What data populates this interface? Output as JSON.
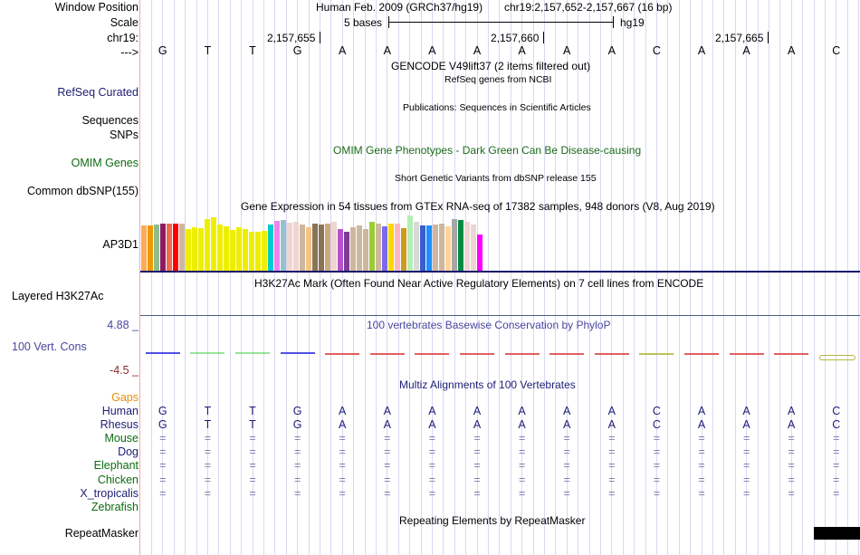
{
  "header": {
    "window_position_label": "Window Position",
    "scale_label": "Scale",
    "chrom_label": "chr19:",
    "strand_label": "--->",
    "assembly_title": "Human Feb. 2009 (GRCh37/hg19)",
    "position": "chr19:2,157,652-2,157,667 (16 bp)",
    "scale_text": "5 bases",
    "scale_db": "hg19",
    "ruler_ticks": [
      "2,157,655",
      "2,157,660",
      "2,157,665"
    ]
  },
  "sequence": [
    "G",
    "T",
    "T",
    "G",
    "A",
    "A",
    "A",
    "A",
    "A",
    "A",
    "A",
    "C",
    "A",
    "A",
    "A",
    "C"
  ],
  "tracks": {
    "gencode": {
      "title": "GENCODE V49lift37 (2 items filtered out)"
    },
    "refseq": {
      "label": "RefSeq Curated",
      "title": "RefSeq genes from NCBI"
    },
    "publications": {
      "label": "Sequences",
      "title": "Publications: Sequences in Scientific Articles"
    },
    "snps_label": "SNPs",
    "omim": {
      "label": "OMIM Genes",
      "title": "OMIM Gene Phenotypes - Dark Green Can Be Disease-causing"
    },
    "dbsnp": {
      "label": "Common dbSNP(155)",
      "title": "Short Genetic Variants from dbSNP release 155"
    },
    "gtex": {
      "label": "AP3D1",
      "title": "Gene Expression in 54 tissues from GTEx RNA-seq of 17382 samples, 948 donors (V8, Aug 2019)"
    },
    "h3k27ac": {
      "label": "Layered H3K27Ac",
      "title": "H3K27Ac Mark (Often Found Near Active Regulatory Elements) on 7 cell lines from ENCODE"
    },
    "phylop": {
      "label": "100 Vert. Cons",
      "title": "100 vertebrates Basewise Conservation by PhyloP",
      "max_label": "4.88 _",
      "min_label": "-4.5 _",
      "range": [
        -4.5,
        4.88
      ],
      "segments": [
        {
          "color": "#3333dd",
          "value": 0.2
        },
        {
          "color": "#33cc33",
          "value": 0.2
        },
        {
          "color": "#33cc33",
          "value": 0.2
        },
        {
          "color": "#3333dd",
          "value": 0.2
        },
        {
          "color": "#dd4444",
          "value": -0.1
        },
        {
          "color": "#dd4444",
          "value": -0.1
        },
        {
          "color": "#dd4444",
          "value": -0.1
        },
        {
          "color": "#dd4444",
          "value": -0.1
        },
        {
          "color": "#dd4444",
          "value": -0.1
        },
        {
          "color": "#dd4444",
          "value": -0.1
        },
        {
          "color": "#dd4444",
          "value": -0.1
        },
        {
          "color": "#b5b53a",
          "value": 0.0
        },
        {
          "color": "#dd4444",
          "value": -0.1
        },
        {
          "color": "#dd4444",
          "value": -0.1
        },
        {
          "color": "#dd4444",
          "value": -0.1
        },
        {
          "color": "#a8a820",
          "value": -0.3
        }
      ]
    },
    "multiz": {
      "title": "Multiz Alignments of 100 Vertebrates",
      "gaps_label": "Gaps",
      "species": [
        {
          "name": "Human",
          "color": "#1d1d77",
          "row": [
            "G",
            "T",
            "T",
            "G",
            "A",
            "A",
            "A",
            "A",
            "A",
            "A",
            "A",
            "C",
            "A",
            "A",
            "A",
            "C"
          ]
        },
        {
          "name": "Rhesus",
          "color": "#1d1d77",
          "row": [
            "G",
            "T",
            "T",
            "G",
            "A",
            "A",
            "A",
            "A",
            "A",
            "A",
            "A",
            "C",
            "A",
            "A",
            "A",
            "C"
          ]
        },
        {
          "name": "Mouse",
          "color": "#0c6b10",
          "row": [
            "=",
            "=",
            "=",
            "=",
            "=",
            "=",
            "=",
            "=",
            "=",
            "=",
            "=",
            "=",
            "=",
            "=",
            "=",
            "="
          ]
        },
        {
          "name": "Dog",
          "color": "#1d1d77",
          "row": [
            "=",
            "=",
            "=",
            "=",
            "=",
            "=",
            "=",
            "=",
            "=",
            "=",
            "=",
            "=",
            "=",
            "=",
            "=",
            "="
          ]
        },
        {
          "name": "Elephant",
          "color": "#0c6b10",
          "row": [
            "=",
            "=",
            "=",
            "=",
            "=",
            "=",
            "=",
            "=",
            "=",
            "=",
            "=",
            "=",
            "=",
            "=",
            "=",
            "="
          ]
        },
        {
          "name": "Chicken",
          "color": "#0c6b10",
          "row": [
            "=",
            "=",
            "=",
            "=",
            "=",
            "=",
            "=",
            "=",
            "=",
            "=",
            "=",
            "=",
            "=",
            "=",
            "=",
            "="
          ]
        },
        {
          "name": "X_tropicalis",
          "color": "#1d1d77",
          "row": [
            "=",
            "=",
            "=",
            "=",
            "=",
            "=",
            "=",
            "=",
            "=",
            "=",
            "=",
            "=",
            "=",
            "=",
            "=",
            "="
          ]
        },
        {
          "name": "Zebrafish",
          "color": "#0c6b10",
          "row": []
        }
      ]
    },
    "repeatmasker": {
      "label": "RepeatMasker",
      "title": "Repeating Elements by RepeatMasker"
    }
  },
  "chart_data": {
    "type": "bar",
    "title": "Gene Expression in 54 tissues from GTEx RNA-seq of 17382 samples, 948 donors (V8, Aug 2019)",
    "gene": "AP3D1",
    "xlabel": "",
    "ylabel": "",
    "ylim": [
      0,
      1
    ],
    "values": [
      0.82,
      0.82,
      0.84,
      0.86,
      0.85,
      0.86,
      0.86,
      0.75,
      0.78,
      0.77,
      0.94,
      0.96,
      0.83,
      0.81,
      0.73,
      0.78,
      0.76,
      0.71,
      0.7,
      0.72,
      0.83,
      0.9,
      0.92,
      0.87,
      0.88,
      0.84,
      0.79,
      0.86,
      0.83,
      0.86,
      0.88,
      0.76,
      0.71,
      0.79,
      0.82,
      0.75,
      0.88,
      0.85,
      0.8,
      0.86,
      0.86,
      0.77,
      1.0,
      0.89,
      0.82,
      0.82,
      0.84,
      0.86,
      0.8,
      0.93,
      0.91,
      0.89,
      0.83,
      0.65
    ],
    "colors": [
      "#ffaa55",
      "#ee9900",
      "#8fbc8f",
      "#8b1c62",
      "#ee6a50",
      "#ff0000",
      "#cdb79e",
      "#eeee00",
      "#eeee00",
      "#eeee00",
      "#eeee00",
      "#eeee00",
      "#eeee00",
      "#eeee00",
      "#eeee00",
      "#eeee00",
      "#eeee00",
      "#eeee00",
      "#eeee00",
      "#eeee00",
      "#00cdcd",
      "#ee82ee",
      "#9ac0cd",
      "#eed5d2",
      "#eed5d2",
      "#cdb79e",
      "#f4c385",
      "#8b7355",
      "#8b7355",
      "#cdaa7d",
      "#eed5d2",
      "#b452cd",
      "#7d3c98",
      "#cdb79e",
      "#cdb79e",
      "#cdb79e",
      "#9acd32",
      "#cdb79e",
      "#7b68ee",
      "#ffd700",
      "#ffb6c1",
      "#cd9b1d",
      "#b4eeb4",
      "#d9d9d9",
      "#3a5fcd",
      "#1e90ff",
      "#cdb79e",
      "#cdb79e",
      "#ffd39b",
      "#a6a6a6",
      "#008b45",
      "#eed5d2",
      "#eed5d2",
      "#ff00ff"
    ]
  }
}
